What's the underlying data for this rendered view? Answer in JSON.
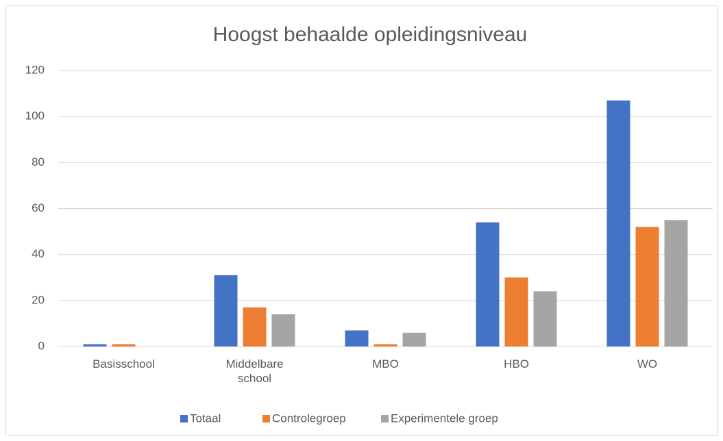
{
  "chart_data": {
    "type": "bar",
    "title": "Hoogst behaalde opleidingsniveau",
    "categories": [
      "Basisschool",
      "Middelbare school",
      "MBO",
      "HBO",
      "WO"
    ],
    "series": [
      {
        "name": "Totaal",
        "color": "#4472c4",
        "values": [
          1,
          31,
          7,
          54,
          107
        ]
      },
      {
        "name": "Controlegroep",
        "color": "#ed7d31",
        "values": [
          1,
          17,
          1,
          30,
          52
        ]
      },
      {
        "name": "Experimentele groep",
        "color": "#a5a5a5",
        "values": [
          0,
          14,
          6,
          24,
          55
        ]
      }
    ],
    "ylim": [
      0,
      120
    ],
    "yticks": [
      0,
      20,
      40,
      60,
      80,
      100,
      120
    ],
    "grid": true,
    "legend": "bottom"
  }
}
